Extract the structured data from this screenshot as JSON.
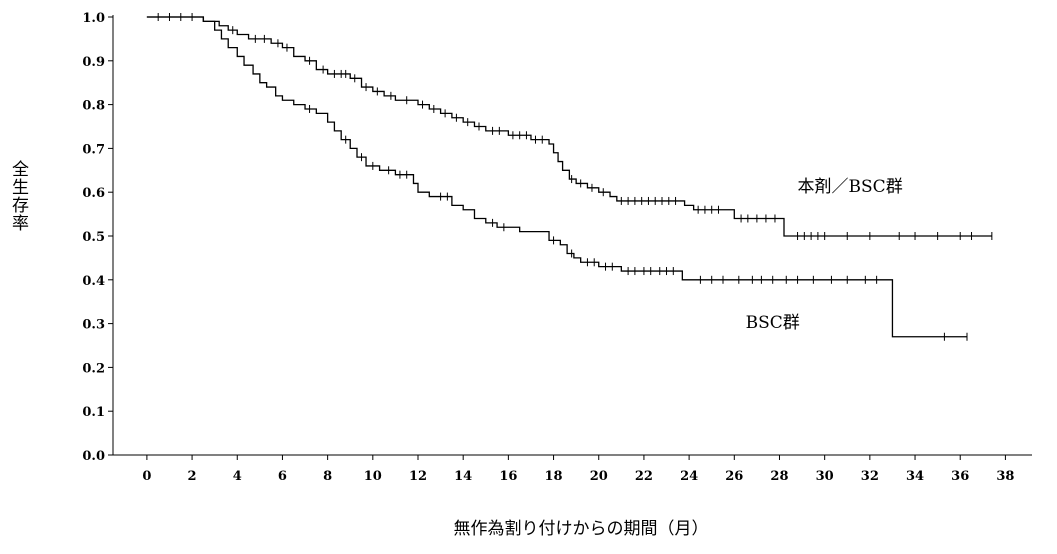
{
  "chart_data": {
    "type": "line",
    "subtype": "kaplan-meier step curve with censor marks",
    "xlabel": "無作為割り付けからの期間（月）",
    "ylabel": "全生存率",
    "xlim": [
      -1.5,
      39
    ],
    "ylim": [
      0,
      1.0
    ],
    "x_ticks": [
      "0",
      "2",
      "4",
      "6",
      "8",
      "10",
      "12",
      "14",
      "16",
      "18",
      "20",
      "22",
      "24",
      "26",
      "28",
      "30",
      "32",
      "34",
      "36",
      "38"
    ],
    "y_ticks": [
      "0.0",
      "0.1",
      "0.2",
      "0.3",
      "0.4",
      "0.5",
      "0.6",
      "0.7",
      "0.8",
      "0.9",
      "1.0"
    ],
    "grid": false,
    "series": [
      {
        "name": "本剤／BSC群",
        "color": "#000000",
        "steps": [
          [
            0,
            1.0
          ],
          [
            2.5,
            0.99
          ],
          [
            3.2,
            0.98
          ],
          [
            3.6,
            0.97
          ],
          [
            4,
            0.96
          ],
          [
            4.5,
            0.95
          ],
          [
            5.5,
            0.94
          ],
          [
            6,
            0.93
          ],
          [
            6.5,
            0.91
          ],
          [
            7,
            0.9
          ],
          [
            7.5,
            0.88
          ],
          [
            8,
            0.87
          ],
          [
            9,
            0.86
          ],
          [
            9.5,
            0.84
          ],
          [
            10,
            0.83
          ],
          [
            10.5,
            0.82
          ],
          [
            11,
            0.81
          ],
          [
            12,
            0.8
          ],
          [
            12.5,
            0.79
          ],
          [
            13,
            0.78
          ],
          [
            13.5,
            0.77
          ],
          [
            14,
            0.76
          ],
          [
            14.5,
            0.75
          ],
          [
            15,
            0.74
          ],
          [
            16,
            0.73
          ],
          [
            17,
            0.72
          ],
          [
            17.8,
            0.71
          ],
          [
            18,
            0.69
          ],
          [
            18.2,
            0.67
          ],
          [
            18.4,
            0.65
          ],
          [
            18.7,
            0.63
          ],
          [
            19,
            0.62
          ],
          [
            19.5,
            0.61
          ],
          [
            20,
            0.6
          ],
          [
            20.5,
            0.59
          ],
          [
            20.8,
            0.58
          ],
          [
            23.8,
            0.57
          ],
          [
            24.2,
            0.56
          ],
          [
            26,
            0.54
          ],
          [
            28.2,
            0.5
          ]
        ],
        "censored": [
          0.5,
          1,
          1.5,
          2,
          3.8,
          4.8,
          5.2,
          5.8,
          6.2,
          7.2,
          7.8,
          8.3,
          8.6,
          8.8,
          9.2,
          9.7,
          10.2,
          10.8,
          11.5,
          12.2,
          12.7,
          13.2,
          13.7,
          14.2,
          14.7,
          15.3,
          15.6,
          16.2,
          16.5,
          16.8,
          17.2,
          17.5,
          18.8,
          19.2,
          19.7,
          20.2,
          21,
          21.3,
          21.6,
          21.9,
          22.2,
          22.5,
          22.8,
          23.1,
          23.4,
          24.4,
          24.7,
          25,
          25.3,
          26.3,
          26.6,
          27,
          27.4,
          27.8,
          28.8,
          29.1,
          29.4,
          29.7,
          30,
          31,
          32,
          33.3,
          34,
          35,
          36,
          36.5,
          37.4
        ]
      },
      {
        "name": "BSC群",
        "color": "#000000",
        "steps": [
          [
            0,
            1.0
          ],
          [
            2.5,
            0.99
          ],
          [
            3,
            0.97
          ],
          [
            3.3,
            0.95
          ],
          [
            3.6,
            0.93
          ],
          [
            4,
            0.91
          ],
          [
            4.3,
            0.89
          ],
          [
            4.7,
            0.87
          ],
          [
            5,
            0.85
          ],
          [
            5.3,
            0.84
          ],
          [
            5.7,
            0.82
          ],
          [
            6,
            0.81
          ],
          [
            6.5,
            0.8
          ],
          [
            7,
            0.79
          ],
          [
            7.5,
            0.78
          ],
          [
            8,
            0.76
          ],
          [
            8.3,
            0.74
          ],
          [
            8.6,
            0.72
          ],
          [
            9,
            0.7
          ],
          [
            9.3,
            0.68
          ],
          [
            9.7,
            0.66
          ],
          [
            10.3,
            0.65
          ],
          [
            11,
            0.64
          ],
          [
            11.8,
            0.62
          ],
          [
            12,
            0.6
          ],
          [
            12.5,
            0.59
          ],
          [
            13.5,
            0.57
          ],
          [
            14,
            0.56
          ],
          [
            14.5,
            0.54
          ],
          [
            15,
            0.53
          ],
          [
            15.5,
            0.52
          ],
          [
            16.5,
            0.51
          ],
          [
            17.8,
            0.49
          ],
          [
            18.3,
            0.48
          ],
          [
            18.6,
            0.46
          ],
          [
            18.9,
            0.45
          ],
          [
            19.2,
            0.44
          ],
          [
            20,
            0.43
          ],
          [
            21,
            0.42
          ],
          [
            23.7,
            0.4
          ],
          [
            33,
            0.27
          ]
        ],
        "censored": [
          7.2,
          8.8,
          9.5,
          10,
          10.7,
          11.2,
          11.5,
          13,
          13.3,
          15.3,
          15.8,
          18,
          18.8,
          19.5,
          19.8,
          20.3,
          20.6,
          21.3,
          21.6,
          22,
          22.3,
          22.7,
          23,
          23.3,
          24.5,
          25,
          25.5,
          26.2,
          26.8,
          27.2,
          27.7,
          28.3,
          28.8,
          29.5,
          30.3,
          31,
          31.8,
          32.3,
          35.3,
          36.3
        ]
      }
    ],
    "annotations": [
      {
        "text": "本剤／BSC群",
        "x": 28.8,
        "y": 0.6
      },
      {
        "text": "BSC群",
        "x": 26.5,
        "y": 0.29
      }
    ]
  }
}
